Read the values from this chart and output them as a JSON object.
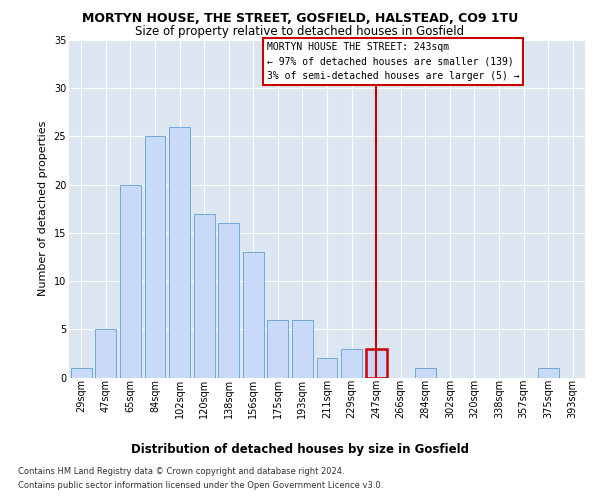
{
  "title": "MORTYN HOUSE, THE STREET, GOSFIELD, HALSTEAD, CO9 1TU",
  "subtitle": "Size of property relative to detached houses in Gosfield",
  "xlabel": "Distribution of detached houses by size in Gosfield",
  "ylabel": "Number of detached properties",
  "categories": [
    "29sqm",
    "47sqm",
    "65sqm",
    "84sqm",
    "102sqm",
    "120sqm",
    "138sqm",
    "156sqm",
    "175sqm",
    "193sqm",
    "211sqm",
    "229sqm",
    "247sqm",
    "266sqm",
    "284sqm",
    "302sqm",
    "320sqm",
    "338sqm",
    "357sqm",
    "375sqm",
    "393sqm"
  ],
  "values": [
    1,
    5,
    20,
    25,
    26,
    17,
    16,
    13,
    6,
    6,
    2,
    3,
    3,
    0,
    1,
    0,
    0,
    0,
    0,
    1,
    0
  ],
  "bar_color": "#c9daf8",
  "bar_edge_color": "#6fa8dc",
  "highlight_index": 12,
  "highlight_edge_color": "#cc0000",
  "annotation_title": "MORTYN HOUSE THE STREET: 243sqm",
  "annotation_line1": "← 97% of detached houses are smaller (139)",
  "annotation_line2": "3% of semi-detached houses are larger (5) →",
  "ylim": [
    0,
    35
  ],
  "yticks": [
    0,
    5,
    10,
    15,
    20,
    25,
    30,
    35
  ],
  "footer_line1": "Contains HM Land Registry data © Crown copyright and database right 2024.",
  "footer_line2": "Contains public sector information licensed under the Open Government Licence v3.0.",
  "bg_color": "#dce6f1",
  "title_fontsize": 9,
  "subtitle_fontsize": 8.5,
  "ylabel_fontsize": 8,
  "xlabel_fontsize": 8.5,
  "tick_fontsize": 7,
  "ann_fontsize": 7,
  "footer_fontsize": 6
}
